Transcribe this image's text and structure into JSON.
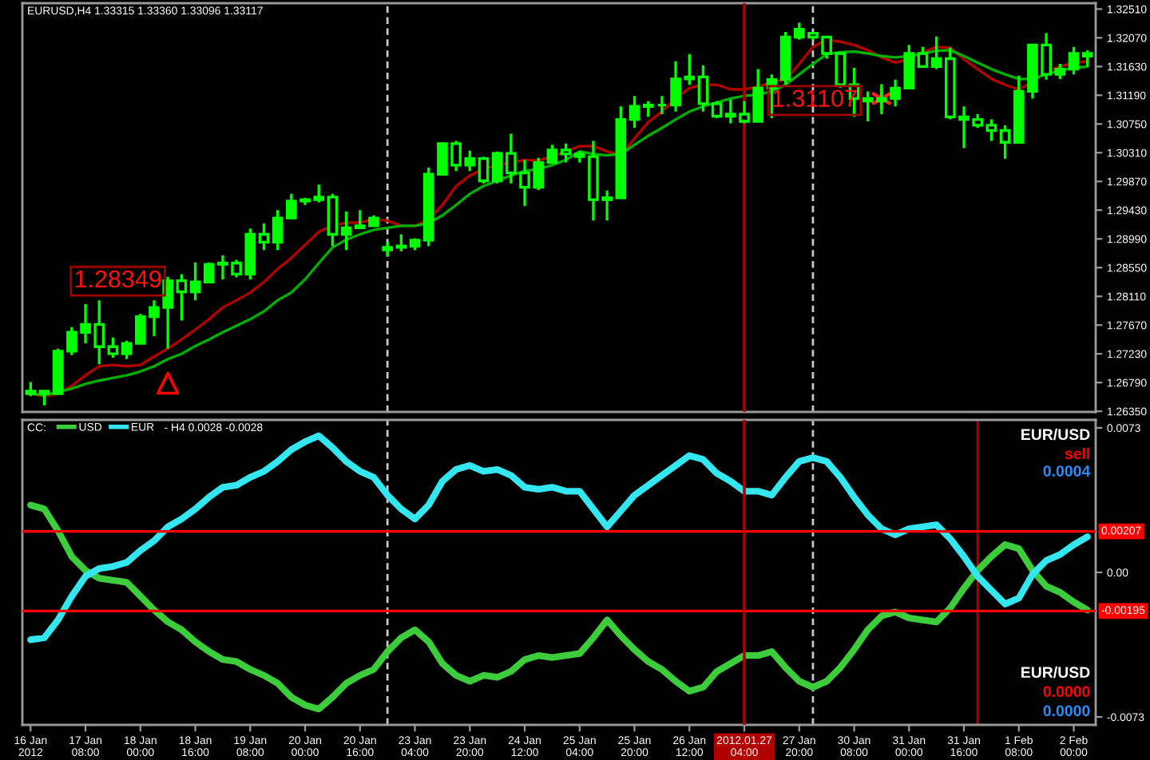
{
  "chart_data": [
    {
      "type": "candlestick",
      "title": "EURUSD,H4 1.33315 1.33360 1.33096 1.33117",
      "color": "#00ff00",
      "categories": [
        "16 Jan 2012",
        null,
        null,
        null,
        "17 Jan 08:00",
        null,
        null,
        null,
        "18 Jan 00:00",
        null,
        null,
        null,
        "18 Jan 16:00",
        null,
        null,
        null,
        "19 Jan 08:00",
        null,
        null,
        null,
        "20 Jan 00:00",
        null,
        null,
        null,
        "20 Jan 16:00",
        null,
        null,
        null,
        "23 Jan 04:00",
        null,
        null,
        null,
        "23 Jan 20:00",
        null,
        null,
        null,
        "24 Jan 12:00",
        null,
        null,
        null,
        "25 Jan 04:00",
        null,
        null,
        null,
        "25 Jan 20:00",
        null,
        null,
        null,
        "26 Jan 12:00",
        null,
        null,
        null,
        "2012.01.27 04:00",
        null,
        null,
        null,
        "27 Jan 20:00",
        null,
        null,
        null,
        "30 Jan 08:00",
        null,
        null,
        null,
        "31 Jan 00:00",
        null,
        null,
        null,
        "31 Jan 16:00",
        null,
        null,
        null,
        "1 Feb 08:00",
        null,
        null,
        null,
        "2 Feb 00:00",
        null
      ],
      "ohlc": [
        [
          1.2662,
          1.268,
          1.2658,
          1.2666
        ],
        [
          1.2666,
          1.2668,
          1.2644,
          1.2662
        ],
        [
          1.2662,
          1.2731,
          1.266,
          1.2727
        ],
        [
          1.2727,
          1.2764,
          1.2721,
          1.2756
        ],
        [
          1.2756,
          1.2799,
          1.2739,
          1.2768
        ],
        [
          1.2768,
          1.2805,
          1.2707,
          1.2734
        ],
        [
          1.2734,
          1.2748,
          1.2717,
          1.2723
        ],
        [
          1.2723,
          1.2743,
          1.2715,
          1.2739
        ],
        [
          1.2739,
          1.2784,
          1.2737,
          1.278
        ],
        [
          1.278,
          1.2805,
          1.275,
          1.2794
        ],
        [
          1.2794,
          1.2841,
          1.2731,
          1.2835
        ],
        [
          1.2835,
          1.2845,
          1.2774,
          1.2818
        ],
        [
          1.2818,
          1.2863,
          1.2805,
          1.2833
        ],
        [
          1.2833,
          1.2863,
          1.2833,
          1.286
        ],
        [
          1.286,
          1.2874,
          1.2837,
          1.2862
        ],
        [
          1.2862,
          1.2867,
          1.284,
          1.2845
        ],
        [
          1.2845,
          1.2915,
          1.2837,
          1.2906
        ],
        [
          1.2906,
          1.2923,
          1.2882,
          1.2894
        ],
        [
          1.2894,
          1.2943,
          1.2882,
          1.2931
        ],
        [
          1.2931,
          1.2968,
          1.2931,
          1.2957
        ],
        [
          1.2957,
          1.2962,
          1.2951,
          1.2959
        ],
        [
          1.2959,
          1.2982,
          1.2955,
          1.2963
        ],
        [
          1.2963,
          1.2968,
          1.2888,
          1.2906
        ],
        [
          1.2906,
          1.2941,
          1.2882,
          1.2916
        ],
        [
          1.2916,
          1.2943,
          1.2915,
          1.2919
        ],
        [
          1.2919,
          1.2935,
          1.2919,
          1.2931
        ],
        [
          1.2882,
          1.2894,
          1.2872,
          1.2886
        ],
        [
          1.2886,
          1.2906,
          1.288,
          1.2888
        ],
        [
          1.2888,
          1.29,
          1.2882,
          1.2897
        ],
        [
          1.2897,
          1.3008,
          1.2888,
          1.2998
        ],
        [
          1.2998,
          1.3045,
          1.2996,
          1.3045
        ],
        [
          1.3045,
          1.3049,
          1.3003,
          1.3012
        ],
        [
          1.3012,
          1.3034,
          1.3003,
          1.3022
        ],
        [
          1.3022,
          1.3025,
          1.2984,
          1.2988
        ],
        [
          1.2988,
          1.3033,
          1.2984,
          1.303
        ],
        [
          1.303,
          1.306,
          1.2984,
          1.3
        ],
        [
          1.3,
          1.302,
          1.2949,
          1.2978
        ],
        [
          1.2978,
          1.3023,
          1.2974,
          1.3016
        ],
        [
          1.3016,
          1.3043,
          1.3016,
          1.3035
        ],
        [
          1.3035,
          1.3045,
          1.3016,
          1.3029
        ],
        [
          1.3029,
          1.3033,
          1.3016,
          1.3025
        ],
        [
          1.3025,
          1.3049,
          1.2927,
          1.2959
        ],
        [
          1.2959,
          1.2973,
          1.2927,
          1.2962
        ],
        [
          1.2962,
          1.3102,
          1.2962,
          1.3082
        ],
        [
          1.3082,
          1.3118,
          1.3069,
          1.3102
        ],
        [
          1.3102,
          1.311,
          1.3086,
          1.3104
        ],
        [
          1.3104,
          1.3118,
          1.309,
          1.3104
        ],
        [
          1.3104,
          1.3171,
          1.3094,
          1.3144
        ],
        [
          1.3144,
          1.3182,
          1.3135,
          1.3147
        ],
        [
          1.3147,
          1.3165,
          1.3094,
          1.3106
        ],
        [
          1.3106,
          1.311,
          1.3084,
          1.3087
        ],
        [
          1.3087,
          1.3112,
          1.3076,
          1.309
        ],
        [
          1.309,
          1.311,
          1.3076,
          1.3079
        ],
        [
          1.3079,
          1.3159,
          1.3079,
          1.313
        ],
        [
          1.313,
          1.3151,
          1.3084,
          1.3143
        ],
        [
          1.3143,
          1.3216,
          1.3135,
          1.3208
        ],
        [
          1.3208,
          1.323,
          1.3204,
          1.322
        ],
        [
          1.3214,
          1.3216,
          1.3204,
          1.3208
        ],
        [
          1.3208,
          1.3208,
          1.3175,
          1.3183
        ],
        [
          1.3183,
          1.3183,
          1.313,
          1.3135
        ],
        [
          1.3135,
          1.3161,
          1.3086,
          1.3114
        ],
        [
          1.3114,
          1.3125,
          1.3079,
          1.311
        ],
        [
          1.311,
          1.3136,
          1.309,
          1.3114
        ],
        [
          1.3114,
          1.3143,
          1.3102,
          1.313
        ],
        [
          1.313,
          1.3196,
          1.313,
          1.3183
        ],
        [
          1.3183,
          1.3193,
          1.3163,
          1.3163
        ],
        [
          1.3163,
          1.3209,
          1.3159,
          1.3175
        ],
        [
          1.3175,
          1.3192,
          1.3082,
          1.3086
        ],
        [
          1.3086,
          1.3102,
          1.3038,
          1.3082
        ],
        [
          1.3082,
          1.309,
          1.3069,
          1.3073
        ],
        [
          1.3073,
          1.3082,
          1.3049,
          1.3065
        ],
        [
          1.3065,
          1.3073,
          1.3022,
          1.3047
        ],
        [
          1.3047,
          1.3149,
          1.3045,
          1.3125
        ],
        [
          1.3125,
          1.3198,
          1.3114,
          1.3196
        ],
        [
          1.3196,
          1.3214,
          1.3143,
          1.3151
        ],
        [
          1.3151,
          1.3167,
          1.3144,
          1.3159
        ],
        [
          1.3159,
          1.3193,
          1.3151,
          1.3183
        ],
        [
          1.3183,
          1.3188,
          1.3163,
          1.3179
        ]
      ],
      "series": [
        {
          "type": "line",
          "color": "#b00000",
          "values": [
            1.2662,
            1.2658,
            1.2662,
            1.2674,
            1.269,
            1.2704,
            1.2706,
            1.2704,
            1.2706,
            1.2719,
            1.2731,
            1.2745,
            1.276,
            1.2776,
            1.2794,
            1.2805,
            1.2817,
            1.2833,
            1.2853,
            1.287,
            1.289,
            1.291,
            1.2919,
            1.2924,
            1.2924,
            1.2929,
            1.2927,
            1.2919,
            1.2919,
            1.2929,
            1.2951,
            1.298,
            1.2996,
            1.3006,
            1.3012,
            1.3016,
            1.302,
            1.3019,
            1.3025,
            1.3033,
            1.3041,
            1.3041,
            1.3033,
            1.3027,
            1.3053,
            1.3078,
            1.3094,
            1.3114,
            1.313,
            1.3135,
            1.3135,
            1.3128,
            1.3128,
            1.3132,
            1.3139,
            1.3143,
            1.3167,
            1.3193,
            1.3204,
            1.3201,
            1.3196,
            1.3188,
            1.3177,
            1.3169,
            1.3174,
            1.3185,
            1.3193,
            1.3192,
            1.3174,
            1.3159,
            1.3144,
            1.3135,
            1.3128,
            1.3139,
            1.3155,
            1.3163,
            1.3169,
            1.3171
          ]
        },
        {
          "type": "line",
          "color": "#00b000",
          "values": [
            1.2662,
            1.266,
            1.2664,
            1.267,
            1.2677,
            1.2682,
            1.2686,
            1.269,
            1.2696,
            1.2704,
            1.2715,
            1.2723,
            1.2735,
            1.2745,
            1.2756,
            1.2766,
            1.2776,
            1.2788,
            1.2805,
            1.2817,
            1.2837,
            1.2862,
            1.2886,
            1.2898,
            1.2906,
            1.2913,
            1.2916,
            1.2919,
            1.2919,
            1.2923,
            1.2935,
            1.2951,
            1.2968,
            1.298,
            1.2988,
            1.2996,
            1.3003,
            1.3006,
            1.3012,
            1.302,
            1.3033,
            1.3029,
            1.3027,
            1.3029,
            1.3043,
            1.3057,
            1.3069,
            1.3082,
            1.3094,
            1.3102,
            1.3108,
            1.3114,
            1.3118,
            1.312,
            1.3125,
            1.3135,
            1.3151,
            1.3167,
            1.3182,
            1.3185,
            1.3186,
            1.3183,
            1.3179,
            1.3177,
            1.3179,
            1.3183,
            1.3187,
            1.3188,
            1.3179,
            1.3169,
            1.3159,
            1.3151,
            1.3144,
            1.3144,
            1.3151,
            1.3157,
            1.3161,
            1.3163
          ]
        },
        {
          "type": "scatter",
          "marker": "triangle",
          "color": "#ff0000",
          "values": [
            null,
            null,
            null,
            null,
            null,
            null,
            null,
            null,
            null,
            null,
            1.2678,
            null,
            null,
            null,
            null,
            null,
            null,
            null,
            null,
            null,
            null,
            null,
            null,
            null,
            null,
            null,
            null,
            null,
            null,
            null,
            null,
            null,
            null,
            null,
            null,
            null,
            null,
            null,
            null,
            null,
            null,
            null,
            null,
            null,
            null,
            null,
            null,
            null,
            null,
            null,
            null,
            null,
            null,
            null,
            null,
            null,
            null,
            null,
            null,
            null,
            null,
            null,
            null,
            null,
            null,
            null,
            null,
            null,
            null,
            null,
            null,
            null,
            null,
            null,
            null,
            null,
            null,
            null
          ]
        },
        {
          "type": "scatter",
          "marker": "cross",
          "color": "#ff2020",
          "values": [
            null,
            null,
            null,
            null,
            null,
            null,
            null,
            null,
            null,
            null,
            null,
            null,
            null,
            null,
            null,
            null,
            null,
            null,
            null,
            null,
            null,
            null,
            null,
            null,
            null,
            null,
            null,
            null,
            null,
            null,
            null,
            null,
            null,
            null,
            null,
            null,
            null,
            null,
            null,
            null,
            null,
            null,
            null,
            null,
            null,
            null,
            null,
            null,
            null,
            null,
            null,
            null,
            null,
            null,
            null,
            null,
            null,
            null,
            null,
            null,
            null,
            null,
            1.3114,
            null,
            null,
            null,
            null,
            null,
            null,
            null,
            null,
            null,
            null,
            null,
            null,
            null,
            null,
            null
          ]
        }
      ],
      "ylim": [
        1.2634,
        1.326
      ],
      "yticks": [
        {
          "value": 1.2635,
          "label": "1.26350"
        },
        {
          "value": 1.2679,
          "label": "1.26790"
        },
        {
          "value": 1.2723,
          "label": "1.27230"
        },
        {
          "value": 1.2767,
          "label": "1.27670"
        },
        {
          "value": 1.2811,
          "label": "1.28110"
        },
        {
          "value": 1.2855,
          "label": "1.28550"
        },
        {
          "value": 1.2899,
          "label": "1.28990"
        },
        {
          "value": 1.2943,
          "label": "1.29430"
        },
        {
          "value": 1.2987,
          "label": "1.29870"
        },
        {
          "value": 1.3031,
          "label": "1.30310"
        },
        {
          "value": 1.3075,
          "label": "1.30750"
        },
        {
          "value": 1.3119,
          "label": "1.31190"
        },
        {
          "value": 1.3163,
          "label": "1.31630"
        },
        {
          "value": 1.3207,
          "label": "1.32070"
        },
        {
          "value": 1.3251,
          "label": "1.32510"
        }
      ],
      "tick_labels": "y",
      "annotations": [
        "1.28349",
        "1.31107"
      ],
      "ref_lines": [
        {
          "axis": "x",
          "value": "2012.01.27 04:00",
          "color": "#b00000"
        }
      ]
    },
    {
      "type": "line",
      "title": "CC:",
      "subtitle": "- H4 0.0028 -0.0028",
      "legend": "top left",
      "categories": [
        "16 Jan 2012",
        null,
        null,
        null,
        "17 Jan 08:00",
        null,
        null,
        null,
        "18 Jan 00:00",
        null,
        null,
        null,
        "18 Jan 16:00",
        null,
        null,
        null,
        "19 Jan 08:00",
        null,
        null,
        null,
        "20 Jan 00:00",
        null,
        null,
        null,
        "20 Jan 16:00",
        null,
        null,
        null,
        "23 Jan 04:00",
        null,
        null,
        null,
        "23 Jan 20:00",
        null,
        null,
        null,
        "24 Jan 12:00",
        null,
        null,
        null,
        "25 Jan 04:00",
        null,
        null,
        null,
        "25 Jan 20:00",
        null,
        null,
        null,
        "26 Jan 12:00",
        null,
        null,
        null,
        "2012.01.27 04:00",
        null,
        null,
        null,
        "27 Jan 20:00",
        null,
        null,
        null,
        "30 Jan 08:00",
        null,
        null,
        null,
        "31 Jan 00:00",
        null,
        null,
        null,
        "31 Jan 16:00",
        null,
        null,
        null,
        "1 Feb 08:00",
        null,
        null,
        null,
        "2 Feb 00:00",
        null
      ],
      "series": [
        {
          "name": "USD",
          "color": "#3ccc3c",
          "values": [
            0.0034,
            0.0032,
            0.0021,
            0.0008,
            0.0001,
            -0.0003,
            -0.0004,
            -0.0005,
            -0.0012,
            -0.0019,
            -0.0025,
            -0.0029,
            -0.0035,
            -0.004,
            -0.0044,
            -0.0045,
            -0.0049,
            -0.0052,
            -0.0056,
            -0.0063,
            -0.0067,
            -0.0069,
            -0.0063,
            -0.0056,
            -0.0052,
            -0.0049,
            -0.004,
            -0.0033,
            -0.0029,
            -0.0035,
            -0.0046,
            -0.0052,
            -0.0055,
            -0.0052,
            -0.0053,
            -0.005,
            -0.0044,
            -0.0042,
            -0.0043,
            -0.0042,
            -0.0041,
            -0.0033,
            -0.0024,
            -0.0032,
            -0.0039,
            -0.0045,
            -0.0049,
            -0.0055,
            -0.006,
            -0.0058,
            -0.005,
            -0.0046,
            -0.0042,
            -0.0042,
            -0.004,
            -0.0048,
            -0.0055,
            -0.0058,
            -0.0055,
            -0.0048,
            -0.0039,
            -0.0029,
            -0.0022,
            -0.002,
            -0.0023,
            -0.0024,
            -0.0025,
            -0.0018,
            -0.0008,
            0.0001,
            0.0008,
            0.0014,
            0.0012,
            0.0001,
            -0.0007,
            -0.001,
            -0.0015,
            -0.0019
          ]
        },
        {
          "name": "EUR",
          "color": "#33e6f0",
          "values": [
            -0.0034,
            -0.0033,
            -0.0024,
            -0.0012,
            -0.0002,
            0.0002,
            0.0003,
            0.0005,
            0.0011,
            0.0016,
            0.0023,
            0.0027,
            0.0032,
            0.0038,
            0.0043,
            0.0044,
            0.0048,
            0.0051,
            0.0056,
            0.0062,
            0.0066,
            0.0069,
            0.0063,
            0.0056,
            0.0051,
            0.0048,
            0.0039,
            0.0032,
            0.0027,
            0.0034,
            0.0046,
            0.0052,
            0.0054,
            0.0051,
            0.0052,
            0.0049,
            0.0043,
            0.0042,
            0.0043,
            0.0041,
            0.0041,
            0.0032,
            0.0023,
            0.0031,
            0.0039,
            0.0044,
            0.0049,
            0.0054,
            0.0059,
            0.0057,
            0.005,
            0.0046,
            0.0041,
            0.0041,
            0.0039,
            0.0048,
            0.0056,
            0.0058,
            0.0056,
            0.0048,
            0.0038,
            0.0029,
            0.0022,
            0.0019,
            0.0022,
            0.0023,
            0.0024,
            0.0017,
            0.0008,
            -0.0002,
            -0.0009,
            -0.0016,
            -0.0013,
            -0.0001,
            0.0006,
            0.0009,
            0.0014,
            0.0018
          ]
        }
      ],
      "ylim": [
        -0.0077,
        0.0077
      ],
      "yticks": [
        -0.0073,
        {
          "value": 0,
          "label": "0.00"
        },
        0.0073
      ],
      "ref_lines": [
        {
          "axis": "y",
          "value": 0.00207,
          "label": "0.00207",
          "color": "#ff0000"
        },
        {
          "axis": "y",
          "value": -0.00195,
          "label": "-0.00195",
          "color": "#ff0000"
        },
        {
          "axis": "x",
          "value": "2012.01.27 04:00",
          "color": "#b00000"
        }
      ],
      "annotations": [
        "EUR/USD",
        "sell",
        "0.0004",
        "EUR/USD",
        "0.0000",
        "0.0000"
      ]
    }
  ]
}
